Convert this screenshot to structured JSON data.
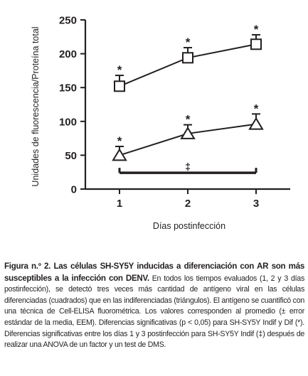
{
  "chart_data": {
    "type": "line",
    "ylabel": "Unidades de fluorescencia/Proteína total",
    "xlabel": "Días postinfección",
    "x": [
      1,
      2,
      3
    ],
    "xticks": [
      "1",
      "2",
      "3"
    ],
    "ylim": [
      0,
      250
    ],
    "yticks": [
      0,
      50,
      100,
      150,
      200,
      250
    ],
    "grid": false,
    "legend": "none",
    "series": [
      {
        "marker": "square",
        "values": [
          152,
          194,
          214
        ],
        "errors": [
          16,
          15,
          14
        ],
        "annotations": [
          "*",
          "*",
          "*"
        ]
      },
      {
        "marker": "triangle",
        "values": [
          50,
          82,
          96
        ],
        "errors": [
          13,
          13,
          15
        ],
        "annotations": [
          "*",
          "*",
          "*"
        ]
      }
    ],
    "bracket": {
      "from": 1,
      "to": 3,
      "y": 24,
      "label": "‡"
    }
  },
  "caption": {
    "title": "Figura n.º 2. Las células SH-SY5Y inducidas a diferenciación con AR son más susceptibles a la infección con DENV.",
    "body": " En todos los tiempos evaluados (1, 2 y 3 días postinfección), se detectó tres veces más cantidad de antígeno viral en las células diferenciadas (cuadrados) que en las indiferenciadas (triángulos). El antígeno se cuantificó con una técnica de Cell-ELISA fluorométrica. Los valores corresponden al promedio (± error estándar de la media, EEM). Diferencias significativas (p < 0,05) para SH-SY5Y Indif y Dif (*). Diferencias significativas entre los días 1 y 3 postinfección para SH-SY5Y Indif (‡) después de realizar una ANOVA de un factor y un test de DMS."
  }
}
